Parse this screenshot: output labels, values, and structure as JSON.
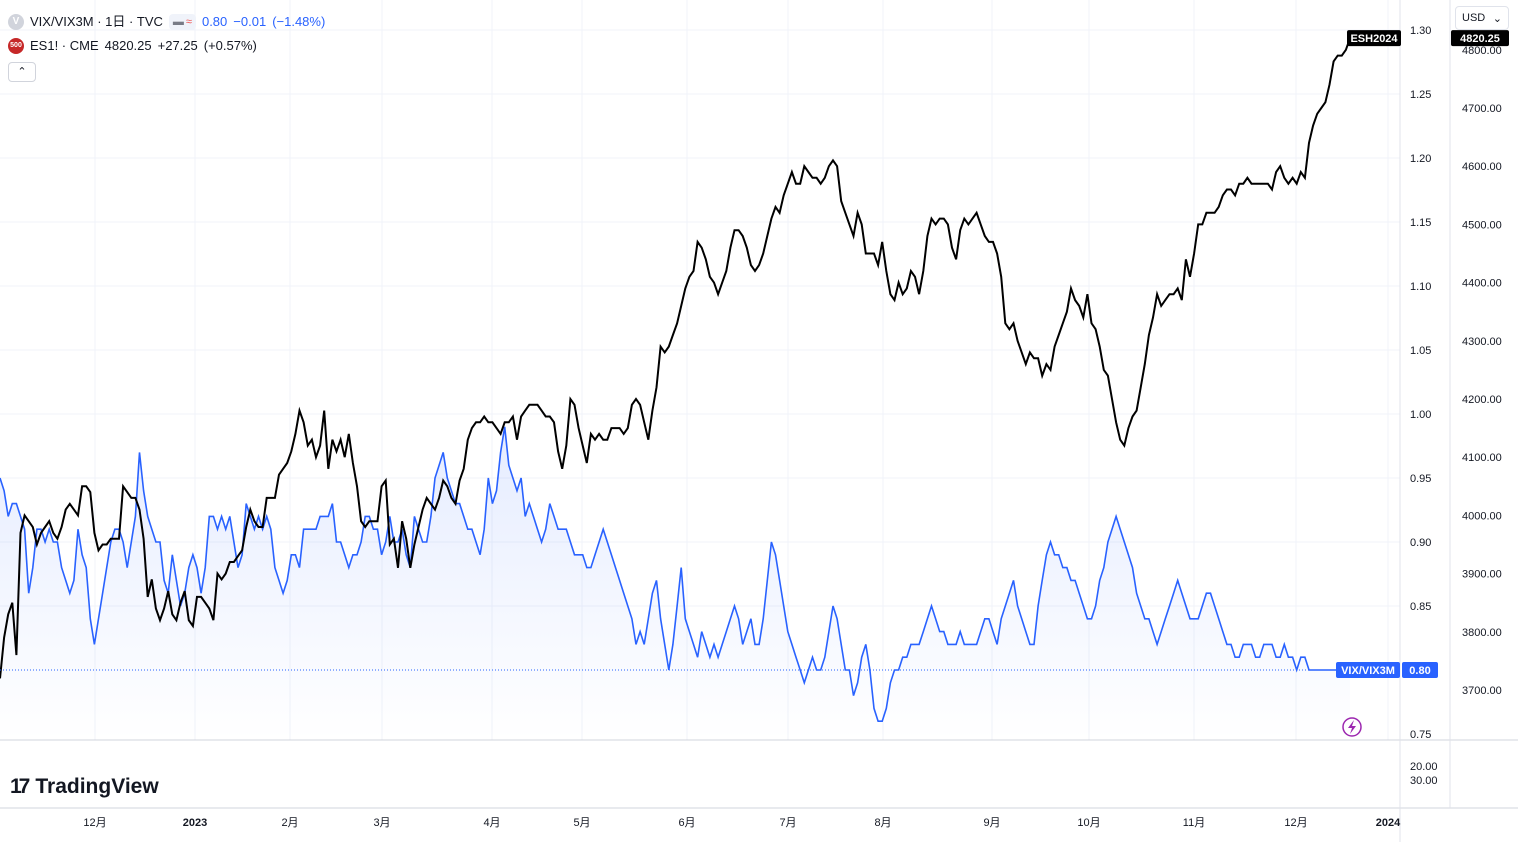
{
  "legend": {
    "main_symbol": "VIX/VIX3M · 1日 · TVC",
    "main_badge": "V",
    "main_value": "0.80",
    "main_change": "−0.01",
    "main_change_pct": "(−1.48%)",
    "second_badge": "500",
    "second_symbol": "ES1! · CME",
    "second_value": "4820.25",
    "second_change": "+27.25",
    "second_change_pct": "(+0.57%)",
    "collapse_icon": "chevron-up-icon"
  },
  "currency": "USD",
  "logo_text": "TradingView",
  "chart_data": {
    "type": "line",
    "x_ticks": [
      "12月",
      "2023",
      "2月",
      "3月",
      "4月",
      "5月",
      "6月",
      "7月",
      "8月",
      "9月",
      "10月",
      "11月",
      "12月",
      "2024"
    ],
    "left_axis_ticks": [
      "1.30",
      "1.25",
      "1.20",
      "1.15",
      "1.10",
      "1.05",
      "1.00",
      "0.95",
      "0.90",
      "0.85",
      "0.75"
    ],
    "right_axis_ticks": [
      "4800.00",
      "4700.00",
      "4600.00",
      "4500.00",
      "4400.00",
      "4300.00",
      "4200.00",
      "4100.00",
      "4000.00",
      "3900.00",
      "3800.00",
      "3700.00"
    ],
    "lower_pane_ticks": [
      "20.00",
      "30.00"
    ],
    "series": [
      {
        "name": "ESH2024",
        "axis": "right",
        "color": "#000000",
        "label": "ESH2024",
        "last_value": "4820.25",
        "values": [
          3720,
          3790,
          3830,
          3850,
          3760,
          3970,
          4000,
          3990,
          3980,
          3950,
          3970,
          3980,
          3990,
          3970,
          3960,
          3980,
          4010,
          4020,
          4010,
          4000,
          4050,
          4050,
          4040,
          3970,
          3940,
          3950,
          3950,
          3960,
          3960,
          3960,
          4050,
          4040,
          4030,
          4030,
          4010,
          3960,
          3860,
          3890,
          3840,
          3820,
          3840,
          3870,
          3830,
          3820,
          3850,
          3870,
          3820,
          3810,
          3860,
          3860,
          3850,
          3840,
          3820,
          3900,
          3890,
          3900,
          3920,
          3920,
          3930,
          3940,
          3980,
          4010,
          3990,
          3980,
          3980,
          4030,
          4030,
          4030,
          4070,
          4080,
          4090,
          4110,
          4140,
          4180,
          4160,
          4120,
          4130,
          4100,
          4120,
          4180,
          4080,
          4130,
          4110,
          4130,
          4100,
          4140,
          4090,
          4050,
          3990,
          3980,
          3990,
          3990,
          3990,
          4050,
          4060,
          3950,
          3960,
          3910,
          3990,
          3960,
          3910,
          3950,
          3980,
          4010,
          4030,
          4020,
          4010,
          4030,
          4060,
          4050,
          4030,
          4020,
          4060,
          4080,
          4130,
          4150,
          4160,
          4160,
          4170,
          4160,
          4160,
          4150,
          4140,
          4160,
          4160,
          4170,
          4130,
          4170,
          4180,
          4190,
          4190,
          4190,
          4180,
          4170,
          4170,
          4160,
          4110,
          4080,
          4120,
          4200,
          4190,
          4150,
          4120,
          4090,
          4140,
          4130,
          4140,
          4130,
          4130,
          4150,
          4150,
          4150,
          4140,
          4150,
          4190,
          4200,
          4190,
          4160,
          4130,
          4180,
          4220,
          4290,
          4280,
          4290,
          4310,
          4330,
          4360,
          4390,
          4410,
          4420,
          4470,
          4460,
          4440,
          4410,
          4400,
          4380,
          4400,
          4420,
          4460,
          4490,
          4490,
          4480,
          4460,
          4430,
          4420,
          4430,
          4450,
          4480,
          4510,
          4530,
          4520,
          4550,
          4570,
          4590,
          4570,
          4570,
          4600,
          4590,
          4580,
          4580,
          4570,
          4580,
          4600,
          4610,
          4600,
          4540,
          4520,
          4500,
          4480,
          4520,
          4500,
          4450,
          4450,
          4450,
          4430,
          4470,
          4420,
          4380,
          4370,
          4400,
          4380,
          4390,
          4420,
          4410,
          4380,
          4420,
          4480,
          4510,
          4500,
          4510,
          4510,
          4500,
          4460,
          4440,
          4490,
          4510,
          4500,
          4510,
          4520,
          4500,
          4480,
          4470,
          4470,
          4450,
          4410,
          4330,
          4320,
          4330,
          4300,
          4280,
          4260,
          4280,
          4270,
          4270,
          4240,
          4260,
          4250,
          4290,
          4310,
          4330,
          4350,
          4390,
          4370,
          4360,
          4340,
          4380,
          4330,
          4320,
          4290,
          4250,
          4240,
          4200,
          4160,
          4130,
          4120,
          4150,
          4170,
          4180,
          4220,
          4260,
          4310,
          4340,
          4380,
          4360,
          4370,
          4380,
          4380,
          4390,
          4370,
          4440,
          4410,
          4450,
          4500,
          4500,
          4520,
          4520,
          4520,
          4530,
          4550,
          4560,
          4560,
          4550,
          4570,
          4570,
          4580,
          4570,
          4570,
          4570,
          4570,
          4570,
          4560,
          4590,
          4600,
          4580,
          4570,
          4580,
          4570,
          4590,
          4580,
          4640,
          4670,
          4690,
          4700,
          4710,
          4740,
          4780,
          4790,
          4790,
          4800,
          4820
        ]
      },
      {
        "name": "VIX/VIX3M",
        "axis": "left",
        "color": "#2962ff",
        "label": "VIX/VIX3M",
        "last_value": "0.80",
        "values": [
          0.95,
          0.94,
          0.92,
          0.93,
          0.93,
          0.92,
          0.91,
          0.86,
          0.88,
          0.91,
          0.91,
          0.9,
          0.91,
          0.9,
          0.9,
          0.88,
          0.87,
          0.86,
          0.87,
          0.91,
          0.89,
          0.88,
          0.84,
          0.82,
          0.84,
          0.86,
          0.88,
          0.9,
          0.91,
          0.91,
          0.9,
          0.88,
          0.9,
          0.92,
          0.97,
          0.94,
          0.92,
          0.91,
          0.9,
          0.9,
          0.87,
          0.86,
          0.89,
          0.87,
          0.85,
          0.86,
          0.88,
          0.89,
          0.88,
          0.86,
          0.88,
          0.92,
          0.92,
          0.91,
          0.92,
          0.91,
          0.92,
          0.9,
          0.88,
          0.89,
          0.93,
          0.92,
          0.91,
          0.92,
          0.91,
          0.92,
          0.91,
          0.88,
          0.87,
          0.86,
          0.87,
          0.89,
          0.89,
          0.88,
          0.91,
          0.91,
          0.91,
          0.91,
          0.92,
          0.92,
          0.92,
          0.93,
          0.9,
          0.9,
          0.89,
          0.88,
          0.89,
          0.89,
          0.9,
          0.92,
          0.92,
          0.91,
          0.91,
          0.89,
          0.9,
          0.92,
          0.9,
          0.9,
          0.91,
          0.89,
          0.88,
          0.92,
          0.91,
          0.9,
          0.9,
          0.92,
          0.95,
          0.96,
          0.97,
          0.95,
          0.94,
          0.93,
          0.93,
          0.92,
          0.91,
          0.91,
          0.9,
          0.89,
          0.91,
          0.95,
          0.93,
          0.94,
          0.97,
          0.99,
          0.96,
          0.95,
          0.94,
          0.95,
          0.92,
          0.93,
          0.92,
          0.91,
          0.9,
          0.91,
          0.93,
          0.92,
          0.91,
          0.91,
          0.91,
          0.9,
          0.89,
          0.89,
          0.89,
          0.88,
          0.88,
          0.89,
          0.9,
          0.91,
          0.9,
          0.89,
          0.88,
          0.87,
          0.86,
          0.85,
          0.84,
          0.82,
          0.83,
          0.82,
          0.84,
          0.86,
          0.87,
          0.84,
          0.82,
          0.8,
          0.82,
          0.85,
          0.88,
          0.84,
          0.83,
          0.82,
          0.81,
          0.83,
          0.82,
          0.81,
          0.82,
          0.81,
          0.82,
          0.83,
          0.84,
          0.85,
          0.84,
          0.82,
          0.83,
          0.84,
          0.82,
          0.82,
          0.84,
          0.87,
          0.9,
          0.89,
          0.87,
          0.85,
          0.83,
          0.82,
          0.81,
          0.8,
          0.79,
          0.8,
          0.81,
          0.8,
          0.8,
          0.81,
          0.83,
          0.85,
          0.84,
          0.82,
          0.8,
          0.8,
          0.78,
          0.79,
          0.81,
          0.82,
          0.8,
          0.77,
          0.76,
          0.76,
          0.77,
          0.79,
          0.8,
          0.8,
          0.81,
          0.81,
          0.82,
          0.82,
          0.82,
          0.83,
          0.84,
          0.85,
          0.84,
          0.83,
          0.83,
          0.82,
          0.82,
          0.82,
          0.83,
          0.82,
          0.82,
          0.82,
          0.82,
          0.83,
          0.84,
          0.84,
          0.83,
          0.82,
          0.84,
          0.85,
          0.86,
          0.87,
          0.85,
          0.84,
          0.83,
          0.82,
          0.82,
          0.85,
          0.87,
          0.89,
          0.9,
          0.89,
          0.89,
          0.88,
          0.88,
          0.87,
          0.87,
          0.86,
          0.85,
          0.84,
          0.84,
          0.85,
          0.87,
          0.88,
          0.9,
          0.91,
          0.92,
          0.91,
          0.9,
          0.89,
          0.88,
          0.86,
          0.85,
          0.84,
          0.84,
          0.83,
          0.82,
          0.83,
          0.84,
          0.85,
          0.86,
          0.87,
          0.86,
          0.85,
          0.84,
          0.84,
          0.84,
          0.85,
          0.86,
          0.86,
          0.85,
          0.84,
          0.83,
          0.82,
          0.82,
          0.81,
          0.81,
          0.82,
          0.82,
          0.82,
          0.81,
          0.81,
          0.82,
          0.82,
          0.82,
          0.81,
          0.81,
          0.82,
          0.81,
          0.81,
          0.8,
          0.81,
          0.81,
          0.8,
          0.8,
          0.8,
          0.8,
          0.8,
          0.8,
          0.8,
          0.8,
          0.8,
          0.8,
          0.8
        ]
      }
    ],
    "grid": true,
    "legend": "top-left"
  }
}
